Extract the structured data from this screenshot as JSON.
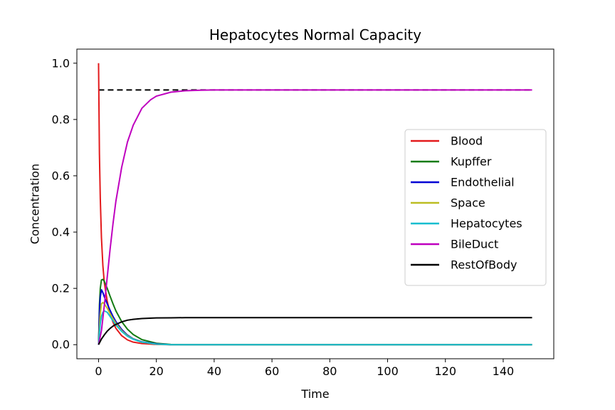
{
  "chart_data": {
    "type": "line",
    "title": "Hepatocytes Normal Capacity",
    "xlabel": "Time",
    "ylabel": "Concentration",
    "xlim": [
      -7.5,
      157.5
    ],
    "ylim": [
      -0.05,
      1.05
    ],
    "xticks": [
      0,
      20,
      40,
      60,
      80,
      100,
      120,
      140
    ],
    "yticks": [
      0.0,
      0.2,
      0.4,
      0.6,
      0.8,
      1.0
    ],
    "xtick_labels": [
      "0",
      "20",
      "40",
      "60",
      "80",
      "100",
      "120",
      "140"
    ],
    "ytick_labels": [
      "0.0",
      "0.2",
      "0.4",
      "0.6",
      "0.8",
      "1.0"
    ],
    "grid": false,
    "legend_position": "center-right",
    "reference_line": {
      "y": 0.905,
      "x_range": [
        0,
        150
      ],
      "style": "dashed",
      "color": "#000000"
    },
    "series": [
      {
        "name": "Blood",
        "color": "#e31a1c",
        "x": [
          0,
          0.3,
          0.6,
          1,
          1.5,
          2,
          3,
          4,
          5,
          6,
          8,
          10,
          12,
          15,
          20,
          25,
          30,
          40,
          150
        ],
        "y": [
          1.0,
          0.68,
          0.52,
          0.38,
          0.28,
          0.22,
          0.155,
          0.11,
          0.08,
          0.058,
          0.032,
          0.017,
          0.009,
          0.004,
          0.001,
          0.0,
          0.0,
          0.0,
          0.0
        ]
      },
      {
        "name": "Kupffer",
        "color": "#137b13",
        "x": [
          0,
          0.3,
          0.6,
          1,
          1.5,
          2,
          3,
          4,
          5,
          6,
          8,
          10,
          12,
          15,
          20,
          25,
          30,
          40,
          150
        ],
        "y": [
          0.0,
          0.14,
          0.2,
          0.23,
          0.232,
          0.225,
          0.2,
          0.172,
          0.145,
          0.12,
          0.082,
          0.055,
          0.036,
          0.018,
          0.005,
          0.001,
          0.0,
          0.0,
          0.0
        ]
      },
      {
        "name": "Endothelial",
        "color": "#0000d4",
        "x": [
          0,
          0.3,
          0.6,
          1,
          1.5,
          2,
          3,
          4,
          5,
          6,
          8,
          10,
          12,
          15,
          20,
          25,
          30,
          40,
          150
        ],
        "y": [
          0.0,
          0.11,
          0.17,
          0.195,
          0.185,
          0.17,
          0.145,
          0.122,
          0.1,
          0.082,
          0.054,
          0.034,
          0.021,
          0.01,
          0.003,
          0.0,
          0.0,
          0.0,
          0.0
        ]
      },
      {
        "name": "Space",
        "color": "#bcbd22",
        "x": [
          0,
          0.3,
          0.6,
          1,
          1.5,
          2,
          3,
          4,
          5,
          6,
          8,
          10,
          12,
          15,
          20,
          25,
          30,
          40,
          150
        ],
        "y": [
          0.0,
          0.06,
          0.11,
          0.145,
          0.15,
          0.145,
          0.13,
          0.11,
          0.092,
          0.076,
          0.05,
          0.032,
          0.02,
          0.009,
          0.002,
          0.0,
          0.0,
          0.0,
          0.0
        ]
      },
      {
        "name": "Hepatocytes",
        "color": "#17becf",
        "x": [
          0,
          0.3,
          0.6,
          1,
          1.5,
          2,
          3,
          4,
          5,
          6,
          8,
          10,
          12,
          15,
          20,
          25,
          30,
          40,
          150
        ],
        "y": [
          0.0,
          0.04,
          0.075,
          0.1,
          0.115,
          0.12,
          0.115,
          0.1,
          0.085,
          0.07,
          0.047,
          0.03,
          0.019,
          0.009,
          0.002,
          0.0,
          0.0,
          0.0,
          0.0
        ]
      },
      {
        "name": "BileDuct",
        "color": "#bf00bf",
        "x": [
          0,
          1,
          2,
          3,
          4,
          5,
          6,
          8,
          10,
          12,
          15,
          18,
          20,
          25,
          30,
          35,
          40,
          50,
          150
        ],
        "y": [
          0.0,
          0.05,
          0.14,
          0.24,
          0.34,
          0.43,
          0.51,
          0.63,
          0.72,
          0.78,
          0.84,
          0.87,
          0.883,
          0.897,
          0.902,
          0.904,
          0.905,
          0.905,
          0.905
        ]
      },
      {
        "name": "RestOfBody",
        "color": "#000000",
        "x": [
          0,
          0.5,
          1,
          2,
          3,
          4,
          5,
          6,
          8,
          10,
          12,
          15,
          20,
          25,
          30,
          40,
          150
        ],
        "y": [
          0.0,
          0.01,
          0.02,
          0.035,
          0.048,
          0.058,
          0.066,
          0.072,
          0.081,
          0.087,
          0.09,
          0.093,
          0.095,
          0.0955,
          0.096,
          0.096,
          0.096
        ]
      }
    ]
  }
}
